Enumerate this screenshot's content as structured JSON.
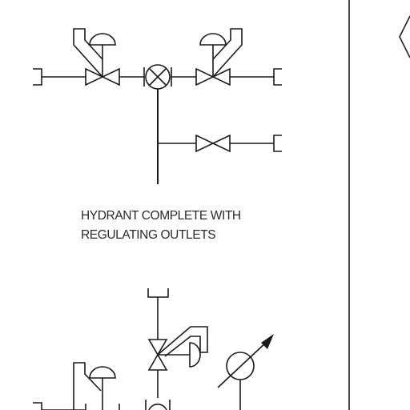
{
  "diagram": {
    "caption": {
      "line1": "HYDRANT COMPLETE WITH",
      "line2": "REGULATING OUTLETS"
    },
    "colors": {
      "line": "#1a1a1a",
      "text": "#2a2a2a",
      "background": "#ffffff"
    }
  }
}
